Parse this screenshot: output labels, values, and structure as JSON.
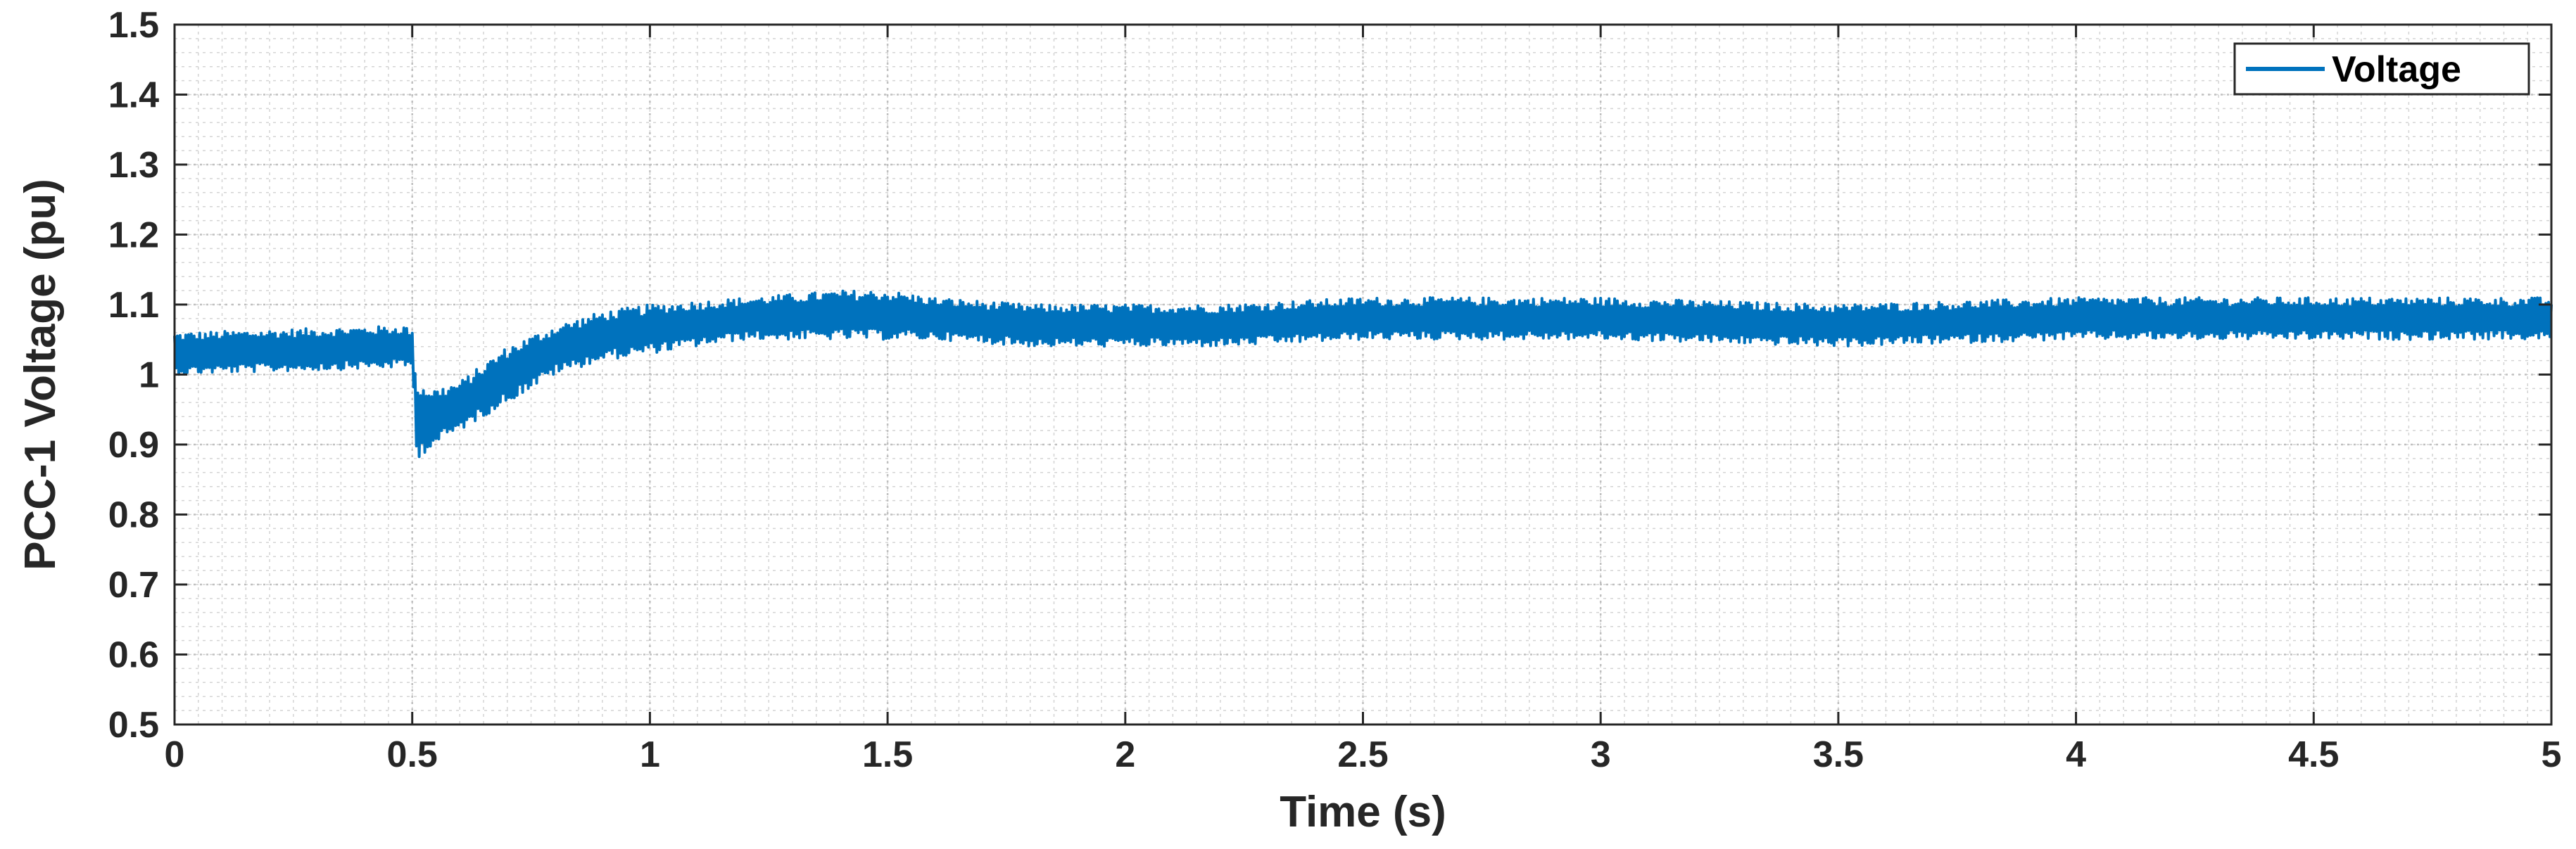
{
  "chart_data": {
    "type": "line",
    "title": "",
    "xlabel": "Time (s)",
    "ylabel": "PCC-1 Voltage (pu)",
    "xlim": [
      0,
      5
    ],
    "ylim": [
      0.5,
      1.5
    ],
    "x_ticks": [
      "0",
      "0.5",
      "1",
      "1.5",
      "2",
      "2.5",
      "3",
      "3.5",
      "4",
      "4.5",
      "5"
    ],
    "y_ticks": [
      "0.5",
      "0.6",
      "0.7",
      "0.8",
      "0.9",
      "1",
      "1.1",
      "1.2",
      "1.3",
      "1.4",
      "1.5"
    ],
    "grid": true,
    "minor_grid": true,
    "legend_position": "top-right",
    "series": [
      {
        "name": "Voltage",
        "color": "#0072BD",
        "envelope": {
          "x": [
            0,
            0.25,
            0.49,
            0.5,
            0.51,
            0.55,
            0.6,
            0.7,
            0.8,
            0.9,
            1.0,
            1.2,
            1.4,
            1.5,
            1.6,
            1.8,
            2.0,
            2.2,
            2.5,
            3.0,
            3.5,
            4.0,
            4.5,
            5.0
          ],
          "upper": [
            1.06,
            1.065,
            1.07,
            1.06,
            0.99,
            0.98,
            0.99,
            1.04,
            1.07,
            1.09,
            1.1,
            1.11,
            1.12,
            1.12,
            1.11,
            1.1,
            1.1,
            1.1,
            1.11,
            1.11,
            1.1,
            1.11,
            1.11,
            1.11
          ],
          "lower": [
            1.0,
            1.005,
            1.01,
            1.01,
            0.88,
            0.9,
            0.92,
            0.96,
            1.0,
            1.02,
            1.03,
            1.05,
            1.05,
            1.05,
            1.05,
            1.04,
            1.04,
            1.04,
            1.05,
            1.05,
            1.04,
            1.05,
            1.05,
            1.05
          ]
        }
      }
    ]
  }
}
